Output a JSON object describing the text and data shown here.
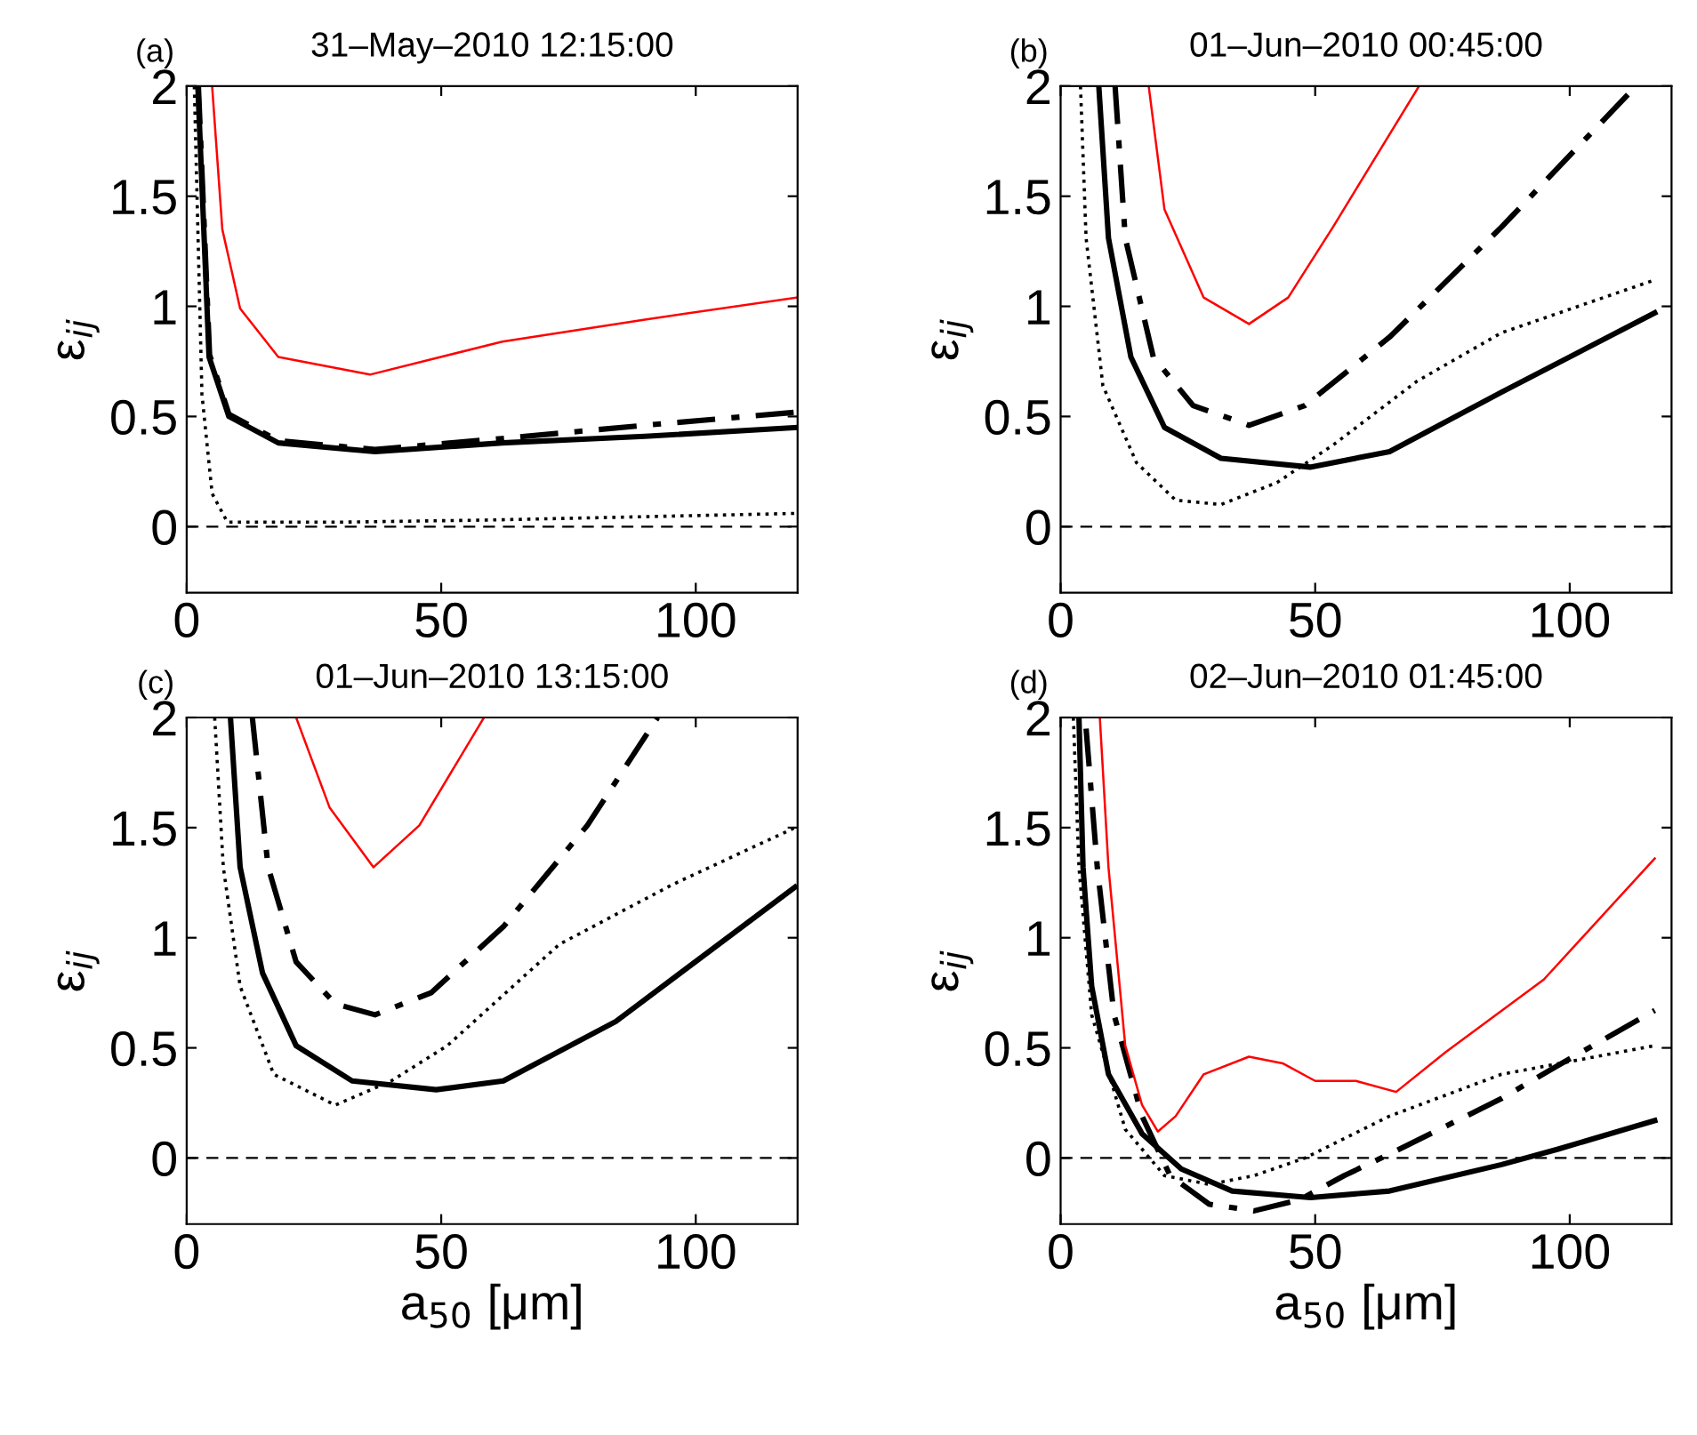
{
  "chart_data": [
    {
      "type": "line",
      "title": "31–May–2010 12:15:00",
      "ylabel": "ε$_{ij}$",
      "annotations": [
        "(a)"
      ],
      "xlim": [
        0,
        120
      ],
      "xticks": [
        0,
        50,
        100
      ],
      "ylim": [
        -0.3,
        2
      ],
      "yticks": [
        0,
        0.5,
        1,
        1.5,
        2
      ],
      "grid": false,
      "legend": false,
      "ref_lines": [
        {
          "axis": "y",
          "value": 0,
          "color": "#000000",
          "line_style": "dashed"
        }
      ],
      "series": [
        {
          "color": "#000000",
          "line_style": "solid",
          "x": [
            2.2,
            4.4,
            8.3,
            18,
            37,
            62,
            90,
            120
          ],
          "values": [
            2,
            0.77,
            0.5,
            0.38,
            0.34,
            0.38,
            0.41,
            0.45
          ]
        },
        {
          "color": "#000000",
          "line_style": "dashdot",
          "x": [
            2.3,
            4.5,
            8.3,
            18,
            37,
            62,
            90,
            120
          ],
          "values": [
            2,
            0.78,
            0.51,
            0.39,
            0.35,
            0.4,
            0.46,
            0.52
          ]
        },
        {
          "color": "#000000",
          "line_style": "dotted",
          "x": [
            1.5,
            3,
            5,
            8,
            30,
            60,
            120
          ],
          "values": [
            2,
            0.6,
            0.15,
            0.02,
            0.02,
            0.03,
            0.06
          ]
        },
        {
          "color": "#ff0000",
          "line_style": "solid",
          "x": [
            5,
            7,
            10.5,
            18,
            36,
            62,
            90,
            120
          ],
          "values": [
            2,
            1.35,
            0.99,
            0.77,
            0.69,
            0.84,
            0.94,
            1.04
          ]
        }
      ]
    },
    {
      "type": "line",
      "title": "01–Jun–2010 00:45:00",
      "ylabel": "ε$_{ij}$",
      "annotations": [
        "(b)"
      ],
      "xlim": [
        0,
        120
      ],
      "xticks": [
        0,
        50,
        100
      ],
      "ylim": [
        -0.3,
        2
      ],
      "yticks": [
        0,
        0.5,
        1,
        1.5,
        2
      ],
      "grid": false,
      "legend": false,
      "ref_lines": [
        {
          "axis": "y",
          "value": 0,
          "color": "#000000",
          "line_style": "dashed"
        }
      ],
      "series": [
        {
          "color": "#000000",
          "line_style": "solid",
          "x": [
            7.5,
            9.4,
            13.8,
            20.4,
            31.5,
            49,
            64.6,
            86.6,
            116.7
          ],
          "values": [
            2,
            1.31,
            0.77,
            0.45,
            0.31,
            0.27,
            0.34,
            0.61,
            0.97
          ]
        },
        {
          "color": "#000000",
          "line_style": "dashdot",
          "x": [
            10.7,
            12.7,
            18.2,
            26,
            37,
            48,
            64.6,
            86.6,
            113
          ],
          "values": [
            2,
            1.31,
            0.77,
            0.55,
            0.46,
            0.55,
            0.86,
            1.36,
            2
          ]
        },
        {
          "color": "#000000",
          "line_style": "dotted",
          "x": [
            3.9,
            5,
            8.3,
            14.9,
            22.6,
            31.5,
            42.5,
            53.5,
            70,
            86.6,
            116.7
          ],
          "values": [
            2,
            1.31,
            0.64,
            0.29,
            0.12,
            0.1,
            0.2,
            0.37,
            0.66,
            0.88,
            1.12
          ]
        },
        {
          "color": "#ff0000",
          "line_style": "solid",
          "x": [
            17.3,
            20.4,
            28.1,
            37,
            44.7,
            53.5,
            70.4
          ],
          "values": [
            2,
            1.44,
            1.04,
            0.92,
            1.04,
            1.36,
            2
          ]
        }
      ]
    },
    {
      "type": "line",
      "title": "01–Jun–2010 13:15:00",
      "xlabel": "a$_{50}$ [μm]",
      "ylabel": "ε$_{ij}$",
      "annotations": [
        "(c)"
      ],
      "xlim": [
        0,
        120
      ],
      "xticks": [
        0,
        50,
        100
      ],
      "ylim": [
        -0.3,
        2
      ],
      "yticks": [
        0,
        0.5,
        1,
        1.5,
        2
      ],
      "grid": false,
      "legend": false,
      "ref_lines": [
        {
          "axis": "y",
          "value": 0,
          "color": "#000000",
          "line_style": "dashed"
        }
      ],
      "series": [
        {
          "color": "#000000",
          "line_style": "solid",
          "x": [
            8.6,
            10.5,
            14.9,
            21.5,
            32.5,
            49,
            62.2,
            84.3,
            119.5
          ],
          "values": [
            2,
            1.32,
            0.84,
            0.51,
            0.35,
            0.31,
            0.35,
            0.62,
            1.23
          ]
        },
        {
          "color": "#000000",
          "line_style": "dashdot",
          "x": [
            12.9,
            16,
            21.5,
            29.2,
            37,
            48,
            62.2,
            78.7,
            92.5
          ],
          "values": [
            2,
            1.32,
            0.89,
            0.7,
            0.65,
            0.75,
            1.05,
            1.51,
            2
          ]
        },
        {
          "color": "#000000",
          "line_style": "dotted",
          "x": [
            5.5,
            7.2,
            10.5,
            17.1,
            29.2,
            40.2,
            51.2,
            73.2,
            95.3,
            119.5
          ],
          "values": [
            2,
            1.32,
            0.78,
            0.38,
            0.24,
            0.35,
            0.51,
            0.97,
            1.24,
            1.5
          ]
        },
        {
          "color": "#ff0000",
          "line_style": "solid",
          "x": [
            21.5,
            28.1,
            36.7,
            45.7,
            58.4
          ],
          "values": [
            2,
            1.59,
            1.32,
            1.51,
            2
          ]
        }
      ]
    },
    {
      "type": "line",
      "title": "02–Jun–2010 01:45:00",
      "xlabel": "a$_{50}$ [μm]",
      "ylabel": "ε$_{ij}$",
      "annotations": [
        "(d)"
      ],
      "xlim": [
        0,
        120
      ],
      "xticks": [
        0,
        50,
        100
      ],
      "ylim": [
        -0.3,
        2
      ],
      "yticks": [
        0,
        0.5,
        1,
        1.5,
        2
      ],
      "grid": false,
      "legend": false,
      "ref_lines": [
        {
          "axis": "y",
          "value": 0,
          "color": "#000000",
          "line_style": "dashed"
        }
      ],
      "series": [
        {
          "color": "#000000",
          "line_style": "solid",
          "x": [
            3.6,
            4.4,
            6.1,
            9.4,
            16,
            23.7,
            33.7,
            49.1,
            64.6,
            86.6,
            97.7,
            116.7
          ],
          "values": [
            2,
            1.32,
            0.78,
            0.38,
            0.11,
            -0.05,
            -0.15,
            -0.18,
            -0.15,
            -0.03,
            0.04,
            0.17
          ]
        },
        {
          "color": "#000000",
          "line_style": "dashdot",
          "x": [
            5,
            7.2,
            10.5,
            16,
            21.5,
            29.2,
            38,
            46.9,
            55.7,
            65.7,
            86.6,
            97.7,
            116.7
          ],
          "values": [
            1.95,
            1.32,
            0.65,
            0.19,
            -0.08,
            -0.21,
            -0.24,
            -0.19,
            -0.08,
            0.03,
            0.27,
            0.42,
            0.67
          ]
        },
        {
          "color": "#000000",
          "line_style": "dotted",
          "x": [
            2.5,
            3.6,
            6.1,
            12.7,
            20.4,
            29.2,
            38,
            48,
            64.6,
            86.6,
            116.7
          ],
          "values": [
            2,
            1.32,
            0.65,
            0.13,
            -0.08,
            -0.12,
            -0.08,
            0,
            0.19,
            0.38,
            0.51
          ]
        },
        {
          "color": "#ff0000",
          "line_style": "solid",
          "x": [
            7.7,
            9.4,
            12.7,
            16,
            19.1,
            22.6,
            28.1,
            37,
            43.6,
            50,
            58,
            65.9,
            75.6,
            94.9,
            116.7
          ],
          "values": [
            2,
            1.32,
            0.51,
            0.24,
            0.12,
            0.19,
            0.38,
            0.46,
            0.43,
            0.35,
            0.35,
            0.3,
            0.48,
            0.81,
            1.36
          ]
        }
      ]
    }
  ]
}
